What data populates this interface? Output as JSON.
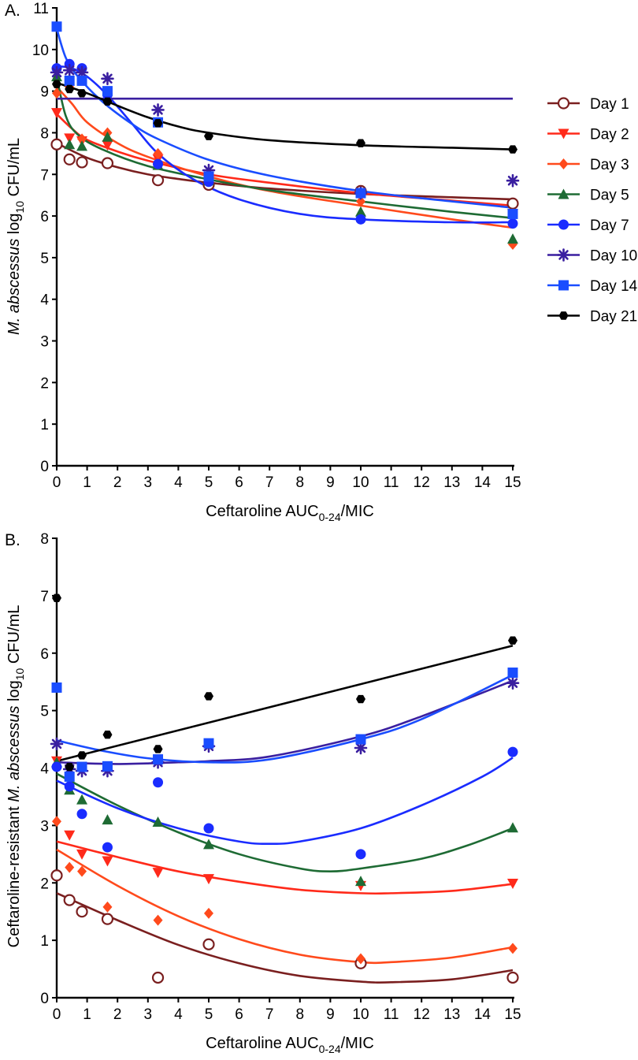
{
  "chart_data": [
    {
      "type": "scatter",
      "panel_label": "A.",
      "xlabel": {
        "main": "Ceftaroline AUC",
        "sub": "0-24",
        "suffix": "/MIC"
      },
      "ylabel": {
        "italic": "M. abscessus",
        "main": " log",
        "sub": "10",
        "suffix": " CFU/mL"
      },
      "xlim": [
        0,
        15
      ],
      "ylim": [
        0,
        11
      ],
      "xticks": [
        0,
        1,
        2,
        3,
        4,
        5,
        6,
        7,
        8,
        9,
        10,
        11,
        12,
        13,
        14,
        15
      ],
      "yticks": [
        0,
        1,
        2,
        3,
        4,
        5,
        6,
        7,
        8,
        9,
        10,
        11
      ],
      "x": [
        0,
        0.42,
        0.83,
        1.67,
        3.33,
        5,
        10,
        15
      ],
      "legend": {
        "placement": "right"
      },
      "series": [
        {
          "name": "Day 1",
          "color": "#7a1f1f",
          "marker": "open-circle",
          "values": [
            7.72,
            7.36,
            7.29,
            7.27,
            6.86,
            6.75,
            6.6,
            6.3
          ],
          "fit": [
            [
              0,
              7.75
            ],
            [
              1,
              7.4
            ],
            [
              2,
              7.17
            ],
            [
              3,
              7.0
            ],
            [
              4,
              6.89
            ],
            [
              5,
              6.8
            ],
            [
              7,
              6.66
            ],
            [
              10,
              6.53
            ],
            [
              13,
              6.45
            ],
            [
              15,
              6.4
            ]
          ]
        },
        {
          "name": "Day 2",
          "color": "#ff2a1a",
          "marker": "triangle-down",
          "values": [
            8.48,
            7.87,
            7.8,
            7.7,
            7.37,
            6.92,
            6.55,
            6.05
          ],
          "fit": [
            [
              0,
              8.45
            ],
            [
              0.5,
              8.1
            ],
            [
              1,
              7.83
            ],
            [
              2,
              7.55
            ],
            [
              3,
              7.33
            ],
            [
              5,
              7.0
            ],
            [
              7,
              6.8
            ],
            [
              10,
              6.55
            ],
            [
              13,
              6.37
            ],
            [
              15,
              6.25
            ]
          ]
        },
        {
          "name": "Day 3",
          "color": "#ff4a1c",
          "marker": "diamond",
          "values": [
            8.95,
            9.1,
            7.85,
            8.0,
            7.5,
            6.95,
            6.35,
            5.32
          ],
          "fit": [
            [
              0,
              9.1
            ],
            [
              0.5,
              8.7
            ],
            [
              1,
              8.25
            ],
            [
              2,
              7.75
            ],
            [
              3,
              7.42
            ],
            [
              5,
              6.95
            ],
            [
              7,
              6.6
            ],
            [
              10,
              6.25
            ],
            [
              13,
              5.92
            ],
            [
              15,
              5.72
            ]
          ]
        },
        {
          "name": "Day 5",
          "color": "#1e6b34",
          "marker": "triangle",
          "values": [
            9.35,
            7.72,
            7.68,
            7.9,
            7.22,
            6.85,
            6.1,
            5.45
          ],
          "fit": [
            [
              0,
              9.35
            ],
            [
              0.3,
              8.4
            ],
            [
              0.7,
              7.95
            ],
            [
              1.5,
              7.6
            ],
            [
              3,
              7.2
            ],
            [
              5,
              6.88
            ],
            [
              7,
              6.62
            ],
            [
              10,
              6.35
            ],
            [
              13,
              6.1
            ],
            [
              15,
              5.95
            ]
          ]
        },
        {
          "name": "Day 7",
          "color": "#1a2cff",
          "marker": "circle",
          "values": [
            9.55,
            9.65,
            9.55,
            8.92,
            7.25,
            6.82,
            5.92,
            5.82
          ],
          "fit": [
            [
              0,
              9.6
            ],
            [
              0.5,
              9.55
            ],
            [
              1,
              9.35
            ],
            [
              1.67,
              8.9
            ],
            [
              2.5,
              8.2
            ],
            [
              3.33,
              7.5
            ],
            [
              4.5,
              6.88
            ],
            [
              6,
              6.4
            ],
            [
              8,
              6.05
            ],
            [
              10,
              5.92
            ],
            [
              13,
              5.85
            ],
            [
              15,
              5.85
            ]
          ]
        },
        {
          "name": "Day 10",
          "color": "#3a1fa0",
          "marker": "asterisk",
          "values": [
            9.45,
            9.5,
            9.45,
            9.3,
            8.55,
            7.1,
            6.55,
            6.85
          ],
          "fit": [
            [
              0,
              8.82
            ],
            [
              15,
              8.82
            ]
          ]
        },
        {
          "name": "Day 14",
          "color": "#1a4dff",
          "marker": "square",
          "values": [
            10.55,
            9.25,
            9.25,
            9.0,
            8.25,
            6.95,
            6.55,
            6.05
          ],
          "fit": [
            [
              0,
              10.5
            ],
            [
              0.3,
              9.8
            ],
            [
              0.7,
              9.35
            ],
            [
              1.5,
              8.75
            ],
            [
              2.5,
              8.2
            ],
            [
              3.33,
              7.85
            ],
            [
              5,
              7.35
            ],
            [
              7,
              6.97
            ],
            [
              10,
              6.6
            ],
            [
              13,
              6.35
            ],
            [
              15,
              6.2
            ]
          ]
        },
        {
          "name": "Day 21",
          "color": "#000000",
          "marker": "hexagon",
          "values": [
            9.17,
            9.05,
            8.95,
            8.75,
            8.23,
            7.92,
            7.75,
            7.6
          ],
          "fit": [
            [
              0,
              9.2
            ],
            [
              1,
              8.95
            ],
            [
              2,
              8.65
            ],
            [
              3,
              8.37
            ],
            [
              4,
              8.15
            ],
            [
              5,
              8.0
            ],
            [
              7,
              7.82
            ],
            [
              10,
              7.7
            ],
            [
              13,
              7.64
            ],
            [
              15,
              7.6
            ]
          ]
        }
      ]
    },
    {
      "type": "scatter",
      "panel_label": "B.",
      "xlabel": {
        "main": "Ceftaroline AUC",
        "sub": "0-24",
        "suffix": "/MIC"
      },
      "ylabel": {
        "pre": "Ceftaroline-resistant ",
        "italic": "M. abscessus",
        "main": " log",
        "sub": "10",
        "suffix": " CFU/mL"
      },
      "xlim": [
        0,
        15
      ],
      "ylim": [
        0,
        8
      ],
      "xticks": [
        0,
        1,
        2,
        3,
        4,
        5,
        6,
        7,
        8,
        9,
        10,
        11,
        12,
        13,
        14,
        15
      ],
      "yticks": [
        0,
        1,
        2,
        3,
        4,
        5,
        6,
        7,
        8
      ],
      "x": [
        0,
        0.42,
        0.83,
        1.67,
        3.33,
        5,
        10,
        15
      ],
      "series": [
        {
          "name": "Day 1",
          "color": "#7a1f1f",
          "marker": "open-circle",
          "values": [
            2.13,
            1.7,
            1.5,
            1.37,
            0.35,
            0.93,
            0.6,
            0.35
          ],
          "fit": [
            [
              0,
              1.82
            ],
            [
              2,
              1.35
            ],
            [
              4,
              0.92
            ],
            [
              6,
              0.6
            ],
            [
              8,
              0.38
            ],
            [
              10,
              0.28
            ],
            [
              11,
              0.27
            ],
            [
              13,
              0.32
            ],
            [
              15,
              0.48
            ]
          ]
        },
        {
          "name": "Day 2",
          "color": "#ff2a1a",
          "marker": "triangle-down",
          "values": [
            4.12,
            2.83,
            2.5,
            2.38,
            2.18,
            2.07,
            1.95,
            1.99
          ],
          "fit": [
            [
              0,
              2.72
            ],
            [
              2,
              2.45
            ],
            [
              4,
              2.2
            ],
            [
              6,
              2.02
            ],
            [
              8,
              1.88
            ],
            [
              10,
              1.82
            ],
            [
              11,
              1.82
            ],
            [
              13,
              1.86
            ],
            [
              15,
              1.98
            ]
          ]
        },
        {
          "name": "Day 3",
          "color": "#ff4a1c",
          "marker": "diamond",
          "values": [
            3.07,
            2.27,
            2.2,
            1.58,
            1.35,
            1.47,
            0.68,
            0.86
          ],
          "fit": [
            [
              0,
              2.58
            ],
            [
              2,
              1.95
            ],
            [
              4,
              1.42
            ],
            [
              6,
              1.02
            ],
            [
              8,
              0.75
            ],
            [
              10,
              0.62
            ],
            [
              11,
              0.62
            ],
            [
              13,
              0.7
            ],
            [
              15,
              0.88
            ]
          ]
        },
        {
          "name": "Day 5",
          "color": "#1e6b34",
          "marker": "triangle",
          "values": [
            4.1,
            3.62,
            3.45,
            3.1,
            3.06,
            2.67,
            2.03,
            2.96
          ],
          "fit": [
            [
              0,
              3.9
            ],
            [
              2,
              3.35
            ],
            [
              4,
              2.88
            ],
            [
              6,
              2.5
            ],
            [
              8,
              2.25
            ],
            [
              9,
              2.2
            ],
            [
              10,
              2.25
            ],
            [
              12,
              2.42
            ],
            [
              13.5,
              2.65
            ],
            [
              15,
              2.95
            ]
          ]
        },
        {
          "name": "Day 7",
          "color": "#1a2cff",
          "marker": "circle",
          "values": [
            4.02,
            3.68,
            3.2,
            2.62,
            3.75,
            2.95,
            2.5,
            4.28
          ],
          "fit": [
            [
              0,
              3.78
            ],
            [
              2,
              3.3
            ],
            [
              4,
              2.95
            ],
            [
              6,
              2.72
            ],
            [
              7,
              2.68
            ],
            [
              8,
              2.72
            ],
            [
              10,
              2.95
            ],
            [
              12,
              3.35
            ],
            [
              14,
              3.85
            ],
            [
              15,
              4.18
            ]
          ]
        },
        {
          "name": "Day 10",
          "color": "#3a1fa0",
          "marker": "asterisk",
          "values": [
            4.42,
            3.98,
            3.95,
            3.95,
            4.1,
            4.38,
            4.35,
            5.48
          ],
          "fit": [
            [
              0,
              4.1
            ],
            [
              1,
              4.08
            ],
            [
              2,
              4.07
            ],
            [
              3,
              4.08
            ],
            [
              4,
              4.1
            ],
            [
              5,
              4.12
            ],
            [
              7,
              4.2
            ],
            [
              10,
              4.55
            ],
            [
              12,
              4.9
            ],
            [
              15,
              5.52
            ]
          ]
        },
        {
          "name": "Day 14",
          "color": "#1a4dff",
          "marker": "square",
          "values": [
            5.4,
            3.85,
            4.02,
            4.03,
            4.15,
            4.43,
            4.5,
            5.66
          ],
          "fit": [
            [
              0,
              4.48
            ],
            [
              1.5,
              4.3
            ],
            [
              3,
              4.17
            ],
            [
              5,
              4.1
            ],
            [
              7,
              4.15
            ],
            [
              10,
              4.5
            ],
            [
              12,
              4.85
            ],
            [
              15,
              5.62
            ]
          ]
        },
        {
          "name": "Day 21",
          "color": "#000000",
          "marker": "hexagon",
          "values": [
            6.96,
            4.02,
            4.22,
            4.58,
            4.33,
            5.25,
            5.2,
            6.22
          ],
          "fit": [
            [
              0,
              4.12
            ],
            [
              15,
              6.13
            ]
          ]
        }
      ]
    }
  ]
}
